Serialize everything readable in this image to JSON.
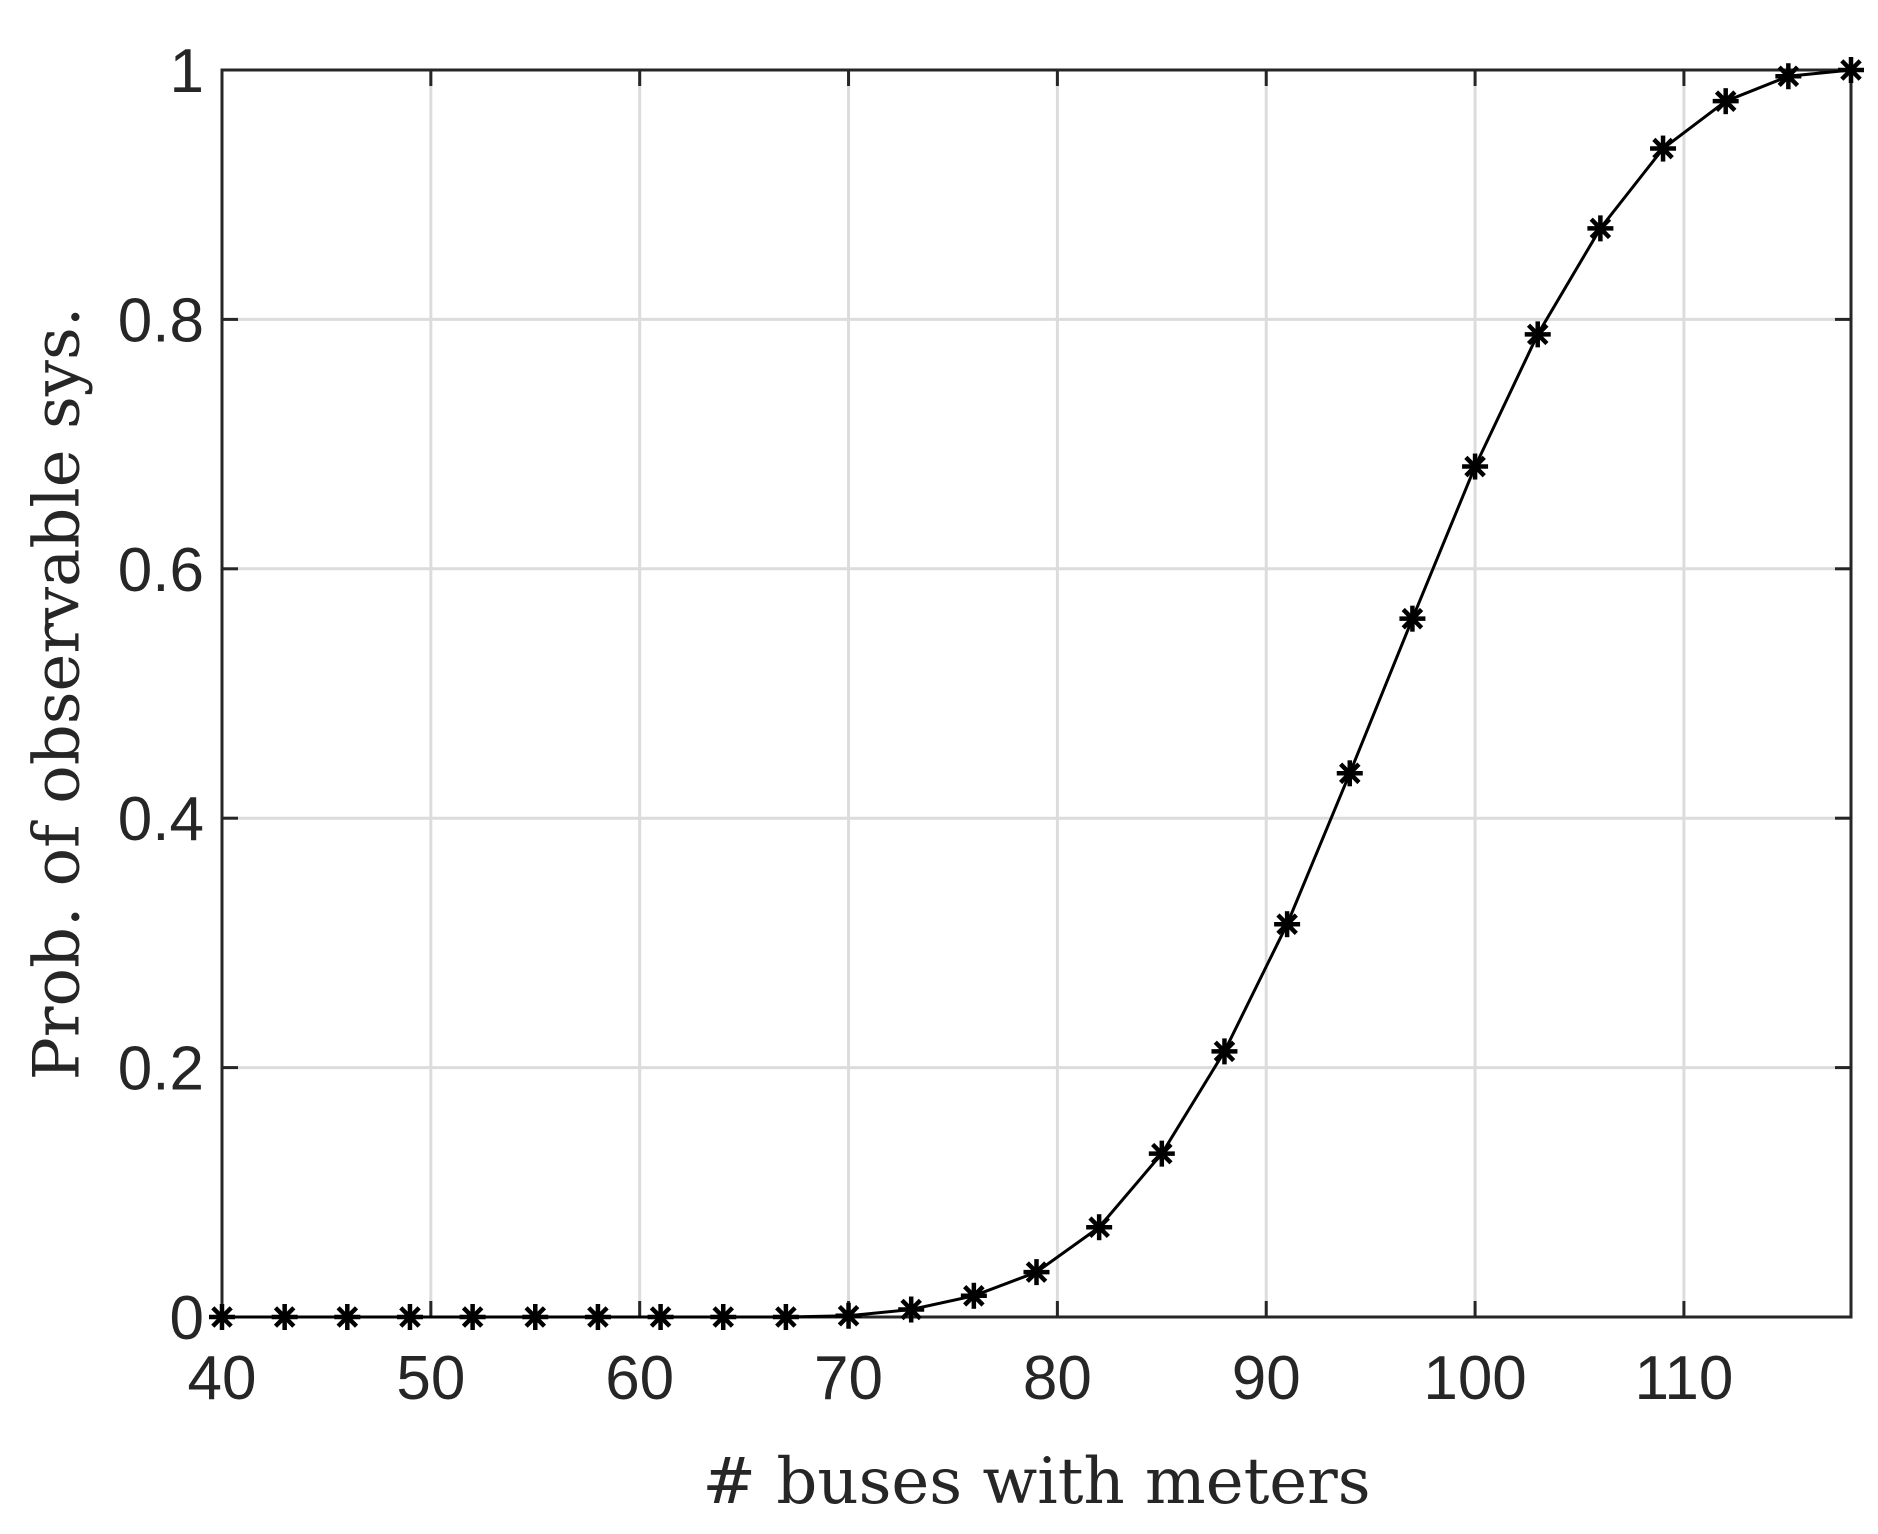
{
  "chart_data": {
    "type": "line",
    "title": "",
    "xlabel": "# buses with meters",
    "ylabel": "Prob. of observable sys.",
    "xlim": [
      40,
      118
    ],
    "ylim": [
      0,
      1
    ],
    "xticks": [
      40,
      50,
      60,
      70,
      80,
      90,
      100,
      110
    ],
    "yticks": [
      0,
      0.2,
      0.4,
      0.6,
      0.8,
      1
    ],
    "xtick_labels": [
      "40",
      "50",
      "60",
      "70",
      "80",
      "90",
      "100",
      "110"
    ],
    "ytick_labels": [
      "0",
      "0.2",
      "0.4",
      "0.6",
      "0.8",
      "1"
    ],
    "grid": true,
    "marker": "asterisk",
    "series": [
      {
        "x": [
          40,
          43,
          46,
          49,
          52,
          55,
          58,
          61,
          64,
          67,
          70,
          73,
          76,
          79,
          82,
          85,
          88,
          91,
          94,
          97,
          100,
          103,
          106,
          109,
          112,
          115,
          118
        ],
        "y": [
          0,
          0,
          0,
          0,
          0,
          0,
          0,
          0,
          0,
          0,
          0.001,
          0.006,
          0.017,
          0.036,
          0.072,
          0.131,
          0.213,
          0.315,
          0.436,
          0.56,
          0.682,
          0.788,
          0.873,
          0.937,
          0.975,
          0.995,
          1.0
        ],
        "color": "#000000"
      }
    ]
  }
}
